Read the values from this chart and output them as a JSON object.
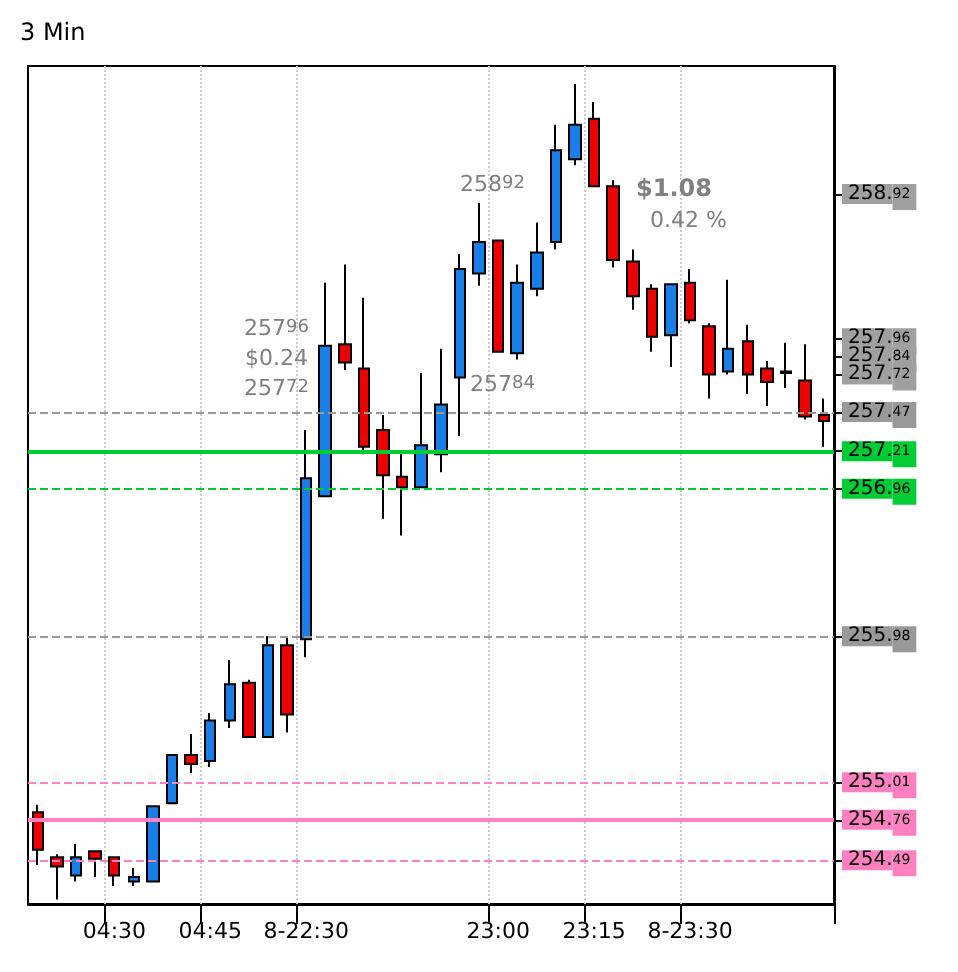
{
  "chart_data": {
    "type": "candlestick",
    "title": "3 Min",
    "categories": [
      null,
      null,
      null,
      null,
      "04:30",
      null,
      null,
      null,
      null,
      "04:45",
      null,
      null,
      null,
      null,
      "8-22:30",
      null,
      null,
      null,
      null,
      null,
      null,
      null,
      null,
      null,
      "23:00",
      null,
      null,
      null,
      null,
      "23:15",
      null,
      null,
      null,
      null,
      "8-23:30",
      null,
      null,
      null,
      null,
      null,
      null,
      null
    ],
    "ohlc": [
      [
        254.81,
        254.86,
        254.46,
        254.56
      ],
      [
        254.51,
        254.53,
        254.23,
        254.45
      ],
      [
        254.39,
        254.6,
        254.35,
        254.51
      ],
      [
        254.55,
        254.55,
        254.38,
        254.5
      ],
      [
        254.51,
        254.51,
        254.32,
        254.39
      ],
      [
        254.35,
        254.44,
        254.32,
        254.38
      ],
      [
        254.35,
        254.85,
        254.35,
        254.85
      ],
      [
        254.87,
        255.19,
        254.87,
        255.19
      ],
      [
        255.19,
        255.33,
        255.07,
        255.13
      ],
      [
        255.15,
        255.47,
        255.11,
        255.42
      ],
      [
        255.42,
        255.82,
        255.37,
        255.66
      ],
      [
        255.67,
        255.69,
        255.31,
        255.31
      ],
      [
        255.31,
        255.98,
        255.31,
        255.92
      ],
      [
        255.92,
        255.98,
        255.34,
        255.46
      ],
      [
        255.96,
        257.35,
        255.84,
        257.03
      ],
      [
        256.91,
        258.33,
        256.91,
        257.91
      ],
      [
        257.92,
        258.45,
        257.75,
        257.8
      ],
      [
        257.76,
        258.23,
        257.19,
        257.24
      ],
      [
        257.35,
        257.45,
        256.76,
        257.05
      ],
      [
        257.04,
        257.19,
        256.65,
        256.97
      ],
      [
        256.97,
        257.73,
        256.97,
        257.25
      ],
      [
        257.19,
        257.89,
        257.07,
        257.52
      ],
      [
        257.7,
        258.52,
        257.31,
        258.42
      ],
      [
        258.39,
        258.86,
        258.31,
        258.6
      ],
      [
        258.61,
        258.61,
        257.87,
        257.87
      ],
      [
        257.86,
        258.45,
        257.82,
        258.33
      ],
      [
        258.29,
        258.73,
        258.24,
        258.53
      ],
      [
        258.6,
        259.38,
        258.55,
        259.21
      ],
      [
        259.15,
        259.65,
        259.11,
        259.38
      ],
      [
        259.42,
        259.53,
        258.97,
        258.97
      ],
      [
        258.97,
        259.01,
        258.43,
        258.48
      ],
      [
        258.47,
        258.55,
        258.15,
        258.24
      ],
      [
        258.29,
        258.32,
        257.87,
        257.97
      ],
      [
        257.98,
        258.32,
        257.77,
        258.32
      ],
      [
        258.33,
        258.42,
        258.06,
        258.08
      ],
      [
        258.04,
        258.06,
        257.56,
        257.72
      ],
      [
        257.74,
        258.35,
        257.72,
        257.89
      ],
      [
        257.94,
        258.05,
        257.59,
        257.72
      ],
      [
        257.76,
        257.81,
        257.51,
        257.67
      ],
      [
        257.73,
        257.93,
        257.63,
        257.74
      ],
      [
        257.68,
        257.92,
        257.42,
        257.44
      ],
      [
        257.45,
        257.56,
        257.24,
        257.41
      ]
    ],
    "colors": [
      "#ee0000",
      "#ee0000",
      "#1a7ee8",
      "#ee0000",
      "#ee0000",
      "#1a7ee8",
      "#1a7ee8",
      "#1a7ee8",
      "#ee0000",
      "#1a7ee8",
      "#1a7ee8",
      "#ee0000",
      "#1a7ee8",
      "#ee0000",
      "#1a7ee8",
      "#1a7ee8",
      "#ee0000",
      "#ee0000",
      "#ee0000",
      "#ee0000",
      "#1a7ee8",
      "#1a7ee8",
      "#1a7ee8",
      "#1a7ee8",
      "#ee0000",
      "#1a7ee8",
      "#1a7ee8",
      "#1a7ee8",
      "#1a7ee8",
      "#ee0000",
      "#ee0000",
      "#ee0000",
      "#ee0000",
      "#1a7ee8",
      "#ee0000",
      "#ee0000",
      "#1a7ee8",
      "#ee0000",
      "#ee0000",
      "#1a7ee8",
      "#ee0000",
      "#ee0000"
    ],
    "ylim": [
      254.2,
      259.77
    ],
    "yticks": [
      258.92,
      257.96,
      257.84,
      257.72,
      257.47,
      257.21,
      256.96,
      255.98,
      255.01,
      254.76,
      254.49
    ],
    "ref_lines": [
      {
        "axis": "y",
        "value": 257.47,
        "color": "#999999",
        "line_style": "dashed"
      },
      {
        "axis": "y",
        "value": 257.21,
        "color": "#00cc33",
        "line_style": "solid"
      },
      {
        "axis": "y",
        "value": 256.96,
        "color": "#00cc33",
        "line_style": "dashed"
      },
      {
        "axis": "y",
        "value": 255.98,
        "color": "#999999",
        "line_style": "dashed"
      },
      {
        "axis": "y",
        "value": 255.01,
        "color": "#ff80c0",
        "line_style": "dashed"
      },
      {
        "axis": "y",
        "value": 254.76,
        "color": "#ff80c0",
        "line_style": "solid"
      },
      {
        "axis": "y",
        "value": 254.49,
        "color": "#ff80c0",
        "line_style": "dashed"
      }
    ],
    "annotations": [
      "$1.08",
      "0.42 %",
      "258$^{92}$",
      "257$^{84}$",
      "257$^{96}$",
      "$0.24",
      "257$^{72}$"
    ],
    "grid": "x"
  }
}
